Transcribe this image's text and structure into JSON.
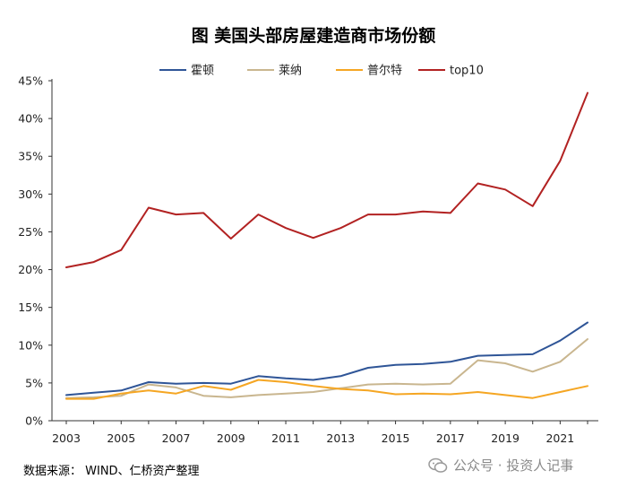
{
  "chart_data": {
    "type": "line",
    "title": "图  美国头部房屋建造商市场份额",
    "x": [
      2003,
      2004,
      2005,
      2006,
      2007,
      2008,
      2009,
      2010,
      2011,
      2012,
      2013,
      2014,
      2015,
      2016,
      2017,
      2018,
      2019,
      2020,
      2021,
      2022
    ],
    "x_tick_labels": [
      "2003",
      "2005",
      "2007",
      "2009",
      "2011",
      "2013",
      "2015",
      "2017",
      "2019",
      "2021"
    ],
    "y_tick_labels": [
      "0%",
      "5%",
      "10%",
      "15%",
      "20%",
      "25%",
      "30%",
      "35%",
      "40%",
      "45%"
    ],
    "ylim": [
      0,
      45
    ],
    "xlabel": "",
    "ylabel": "",
    "legend_position": "top",
    "series": [
      {
        "name": "霍顿",
        "color": "#2f5597",
        "values": [
          3.4,
          3.7,
          4.0,
          5.1,
          4.9,
          5.0,
          4.9,
          5.9,
          5.6,
          5.4,
          5.9,
          7.0,
          7.4,
          7.5,
          7.8,
          8.6,
          8.7,
          8.8,
          10.6,
          13.0
        ]
      },
      {
        "name": "莱纳",
        "color": "#c9b68f",
        "values": [
          3.0,
          3.1,
          3.3,
          4.8,
          4.4,
          3.3,
          3.1,
          3.4,
          3.6,
          3.8,
          4.3,
          4.8,
          4.9,
          4.8,
          4.9,
          8.0,
          7.6,
          6.5,
          7.8,
          10.8
        ]
      },
      {
        "name": "普尔特",
        "color": "#f5a623",
        "values": [
          2.9,
          2.9,
          3.6,
          4.0,
          3.6,
          4.6,
          4.1,
          5.4,
          5.1,
          4.6,
          4.2,
          4.0,
          3.5,
          3.6,
          3.5,
          3.8,
          3.4,
          3.0,
          3.8,
          4.6
        ]
      },
      {
        "name": "top10",
        "color": "#b22222",
        "values": [
          20.3,
          21.0,
          22.6,
          28.2,
          27.3,
          27.5,
          24.1,
          27.3,
          25.5,
          24.2,
          25.5,
          27.3,
          27.3,
          27.7,
          27.5,
          31.4,
          30.6,
          28.4,
          34.4,
          43.4
        ]
      }
    ]
  },
  "footer": {
    "source": "数据来源：  WIND、仁桥资产整理",
    "watermark": "公众号 · 投资人记事"
  }
}
